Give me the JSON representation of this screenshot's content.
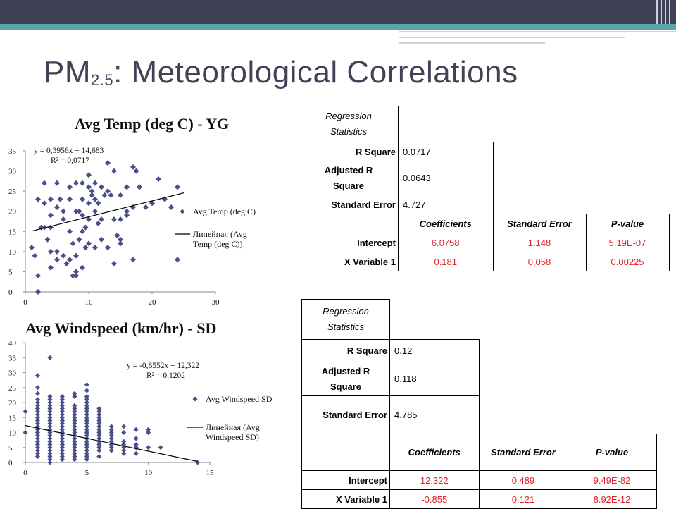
{
  "title": {
    "main": "PM",
    "sub": "2.5",
    "rest": ": Meteorological Correlations"
  },
  "chart_data": [
    {
      "type": "scatter",
      "title": "Avg Temp (deg C) - YG",
      "xlim": [
        0,
        30
      ],
      "ylim": [
        0,
        35
      ],
      "xticks": [
        "0",
        "10",
        "20",
        "30"
      ],
      "yticks": [
        "0",
        "5",
        "10",
        "15",
        "20",
        "25",
        "30",
        "35"
      ],
      "equation": "y = 0,3956x + 14,683",
      "r2": "R² = 0,0717",
      "trendline": {
        "slope": 0.3956,
        "intercept": 14.683,
        "x_range": [
          1,
          25
        ]
      },
      "legend": [
        "Avg Temp (deg C)",
        "Линейная (Avg Temp (deg C))"
      ],
      "legend_lines": [
        [
          "Avg Temp (deg C)"
        ],
        [
          "Линейная (Avg",
          "Temp (deg C))"
        ]
      ],
      "legend_position": "right",
      "color": "#4a4f8c",
      "series": [
        {
          "name": "Avg Temp (deg C)",
          "points": [
            [
              1,
              11
            ],
            [
              1.5,
              9
            ],
            [
              2,
              0
            ],
            [
              2,
              4
            ],
            [
              2,
              23
            ],
            [
              2.5,
              16
            ],
            [
              3,
              22
            ],
            [
              3,
              16
            ],
            [
              3,
              27
            ],
            [
              3.5,
              13
            ],
            [
              4,
              10
            ],
            [
              4,
              6
            ],
            [
              4,
              19
            ],
            [
              4,
              16
            ],
            [
              4,
              23
            ],
            [
              5,
              10
            ],
            [
              5,
              8
            ],
            [
              5,
              21
            ],
            [
              5,
              27
            ],
            [
              5.5,
              23
            ],
            [
              6,
              9
            ],
            [
              6,
              18
            ],
            [
              6,
              20
            ],
            [
              6.5,
              7
            ],
            [
              7,
              8
            ],
            [
              7,
              23
            ],
            [
              7,
              26
            ],
            [
              7,
              15
            ],
            [
              7.5,
              4
            ],
            [
              7.5,
              12
            ],
            [
              8,
              5
            ],
            [
              8,
              9
            ],
            [
              8,
              20
            ],
            [
              8,
              27
            ],
            [
              8,
              4
            ],
            [
              8.5,
              13
            ],
            [
              8.5,
              20
            ],
            [
              9,
              6
            ],
            [
              9,
              27
            ],
            [
              9,
              19
            ],
            [
              9,
              15
            ],
            [
              9,
              23
            ],
            [
              9.5,
              11
            ],
            [
              9.5,
              16
            ],
            [
              10,
              29
            ],
            [
              10,
              26
            ],
            [
              10,
              22
            ],
            [
              10,
              12
            ],
            [
              10,
              18
            ],
            [
              10.5,
              24
            ],
            [
              10.5,
              25
            ],
            [
              11,
              11
            ],
            [
              11,
              20
            ],
            [
              11,
              23
            ],
            [
              11,
              27
            ],
            [
              11.5,
              17
            ],
            [
              11.5,
              22
            ],
            [
              12,
              26
            ],
            [
              12,
              13
            ],
            [
              12,
              18
            ],
            [
              12.5,
              24
            ],
            [
              13,
              11
            ],
            [
              13,
              25
            ],
            [
              13,
              32
            ],
            [
              13.5,
              24
            ],
            [
              14,
              7
            ],
            [
              14,
              30
            ],
            [
              14,
              18
            ],
            [
              14.5,
              14
            ],
            [
              15,
              13
            ],
            [
              15,
              24
            ],
            [
              15,
              18
            ],
            [
              15,
              12
            ],
            [
              16,
              20
            ],
            [
              16,
              26
            ],
            [
              16,
              19
            ],
            [
              17,
              8
            ],
            [
              17,
              31
            ],
            [
              17,
              21
            ],
            [
              17.5,
              30
            ],
            [
              18,
              26
            ],
            [
              18,
              26
            ],
            [
              19,
              21
            ],
            [
              20,
              22
            ],
            [
              21,
              28
            ],
            [
              22,
              23
            ],
            [
              23,
              21
            ],
            [
              24,
              26
            ],
            [
              24,
              8
            ]
          ]
        }
      ]
    },
    {
      "type": "scatter",
      "title": "Avg Windspeed (km/hr) - SD",
      "xlim": [
        0,
        15
      ],
      "ylim": [
        0,
        40
      ],
      "xticks": [
        "0",
        "5",
        "10",
        "15"
      ],
      "yticks": [
        "0",
        "5",
        "10",
        "15",
        "20",
        "25",
        "30",
        "35",
        "40"
      ],
      "equation": "y = -0,8552x + 12,322",
      "r2": "R² = 0,1202",
      "trendline": {
        "slope": -0.8552,
        "intercept": 12.322,
        "x_range": [
          0,
          14
        ]
      },
      "legend": [
        "Avg Windspeed SD",
        "Линейная (Avg Windspeed SD)"
      ],
      "legend_lines": [
        [
          "Avg Windspeed SD"
        ],
        [
          "Линейная (Avg",
          "Windspeed SD)"
        ]
      ],
      "legend_position": "right",
      "color": "#4a4f8c",
      "series": [
        {
          "name": "Avg Windspeed SD",
          "columns": [
            {
              "x": 0,
              "ys": [
                10,
                17
              ]
            },
            {
              "x": 1,
              "ys": [
                2,
                3,
                4,
                5,
                6,
                7,
                8,
                9,
                10,
                11,
                12,
                13,
                14,
                15,
                16,
                17,
                18,
                19,
                20,
                21,
                23,
                25,
                29
              ]
            },
            {
              "x": 2,
              "ys": [
                0,
                1,
                2,
                3,
                4,
                5,
                6,
                7,
                8,
                9,
                10,
                11,
                12,
                13,
                14,
                15,
                16,
                17,
                18,
                19,
                20,
                21,
                22,
                35
              ]
            },
            {
              "x": 3,
              "ys": [
                1,
                2,
                3,
                4,
                5,
                6,
                7,
                8,
                9,
                10,
                11,
                12,
                13,
                14,
                15,
                16,
                17,
                18,
                19,
                20,
                21,
                22
              ]
            },
            {
              "x": 4,
              "ys": [
                1,
                2,
                3,
                4,
                5,
                6,
                7,
                8,
                9,
                10,
                11,
                12,
                13,
                14,
                15,
                16,
                17,
                18,
                19,
                22,
                23
              ]
            },
            {
              "x": 5,
              "ys": [
                1,
                2,
                3,
                4,
                5,
                6,
                7,
                8,
                9,
                10,
                11,
                12,
                13,
                14,
                15,
                16,
                17,
                18,
                19,
                20,
                21,
                22,
                24,
                26
              ]
            },
            {
              "x": 6,
              "ys": [
                2,
                4,
                5,
                6,
                7,
                8,
                9,
                10,
                11,
                12,
                13,
                14,
                15,
                16,
                17,
                18
              ]
            },
            {
              "x": 7,
              "ys": [
                4,
                5,
                6,
                7,
                8,
                9,
                10,
                11,
                12
              ]
            },
            {
              "x": 8,
              "ys": [
                3,
                4,
                5,
                6,
                7,
                10,
                12
              ]
            },
            {
              "x": 9,
              "ys": [
                3,
                5,
                6,
                8,
                11
              ]
            },
            {
              "x": 10,
              "ys": [
                5,
                10,
                11
              ]
            },
            {
              "x": 11,
              "ys": [
                5
              ]
            },
            {
              "x": 14,
              "ys": [
                0
              ]
            }
          ]
        }
      ]
    }
  ],
  "tables": [
    {
      "stats_header": [
        "Regression",
        "Statistics"
      ],
      "rows": [
        {
          "label": "R Square",
          "value": "0.0717"
        },
        {
          "label_lines": [
            "Adjusted R",
            "Square"
          ],
          "value": "0.0643"
        },
        {
          "label": "Standard Error",
          "value": "4.727"
        }
      ],
      "col_headers": [
        "Coefficients",
        "Standard Error",
        "P-value"
      ],
      "coef_rows": [
        {
          "label": "Intercept",
          "values": [
            "6.0758",
            "1.148",
            "5.19E-07"
          ]
        },
        {
          "label": "X Variable 1",
          "values": [
            "0.181",
            "0.058",
            "0.00225"
          ]
        }
      ]
    },
    {
      "stats_header": [
        "Regression",
        "Statistics"
      ],
      "rows": [
        {
          "label": "R Square",
          "value": "0.12"
        },
        {
          "label_lines": [
            "Adjusted R",
            "Square"
          ],
          "value": "0.118"
        },
        {
          "label": "Standard Error",
          "value": "4.785"
        }
      ],
      "col_headers": [
        "Coefficients",
        "Standard Error",
        "P-value"
      ],
      "coef_rows": [
        {
          "label": "Intercept",
          "values": [
            "12.322",
            "0.489",
            "9.49E-82"
          ]
        },
        {
          "label": "X Variable 1",
          "values": [
            "-0.855",
            "0.121",
            "8.92E-12"
          ]
        }
      ]
    }
  ]
}
